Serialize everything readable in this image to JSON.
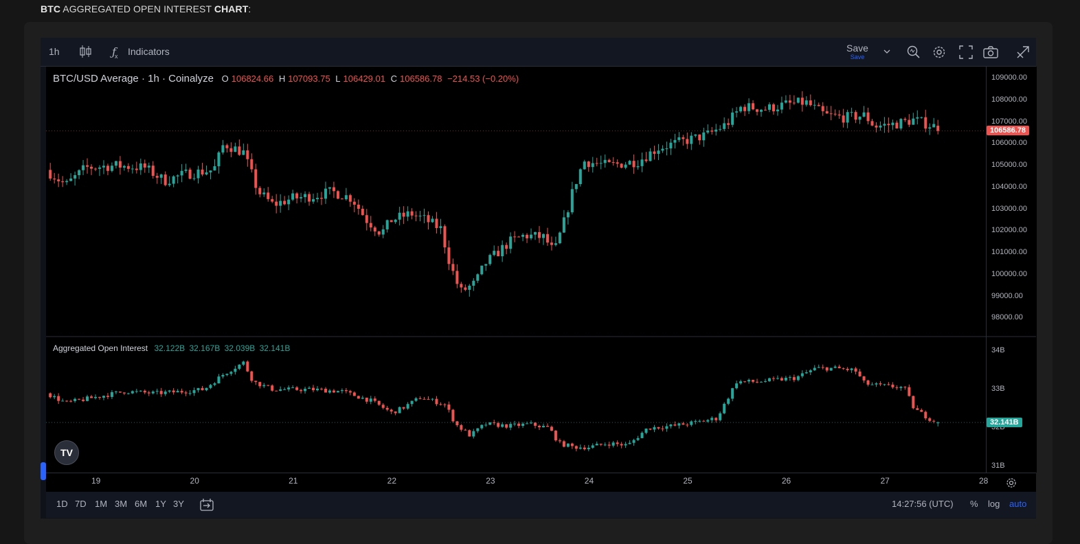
{
  "page": {
    "title_bold_1": "BTC",
    "title_mid": " AGGREGATED OPEN INTEREST ",
    "title_bold_2": "CHART",
    "title_tail": ":"
  },
  "toolbar": {
    "interval": "1h",
    "chart_type_icon": "candles-icon",
    "indicators_label": "Indicators",
    "save_label": "Save",
    "save_sub": "Save"
  },
  "main_pane": {
    "symbol": "BTC/USD Average · 1h · Coinalyze",
    "o_label": "O",
    "o_value": "106824.66",
    "h_label": "H",
    "h_value": "107093.75",
    "l_label": "L",
    "l_value": "106429.01",
    "c_label": "C",
    "c_value": "106586.78",
    "change": "−214.53 (−0.20%)",
    "last_price": "106586.78",
    "axis_ticks": [
      "109000.00",
      "108000.00",
      "107000.00",
      "106000.00",
      "105000.00",
      "104000.00",
      "103000.00",
      "102000.00",
      "101000.00",
      "100000.00",
      "99000.00",
      "98000.00"
    ]
  },
  "oi_pane": {
    "title": "Aggregated Open Interest",
    "v1": "32.122B",
    "v2": "32.167B",
    "v3": "32.039B",
    "v4": "32.141B",
    "last_value": "32.141B",
    "axis_ticks": [
      "34B",
      "33B",
      "32B",
      "31B"
    ]
  },
  "time_axis": {
    "labels": [
      "19",
      "20",
      "21",
      "22",
      "23",
      "24",
      "25",
      "26",
      "27",
      "28"
    ]
  },
  "bottom_bar": {
    "ranges": [
      "1D",
      "7D",
      "1M",
      "3M",
      "6M",
      "1Y",
      "3Y"
    ],
    "clock": "14:27:56 (UTC)",
    "percent": "%",
    "log": "log",
    "auto": "auto"
  },
  "logo": "TV",
  "colors": {
    "up": "#26a69a",
    "down": "#ef5350",
    "accent": "#2962ff",
    "background": "#000000"
  },
  "chart_data": [
    {
      "type": "candlestick",
      "title": "BTC/USD Average · 1h · Coinalyze",
      "x_labels": [
        "19",
        "20",
        "21",
        "22",
        "23",
        "24",
        "25",
        "26",
        "27",
        "28"
      ],
      "ylim": [
        97500,
        109500
      ],
      "close_anchors": [
        [
          18.5,
          104800
        ],
        [
          18.7,
          104100
        ],
        [
          18.9,
          104900
        ],
        [
          19.2,
          105000
        ],
        [
          19.5,
          104900
        ],
        [
          19.7,
          104300
        ],
        [
          19.9,
          104600
        ],
        [
          20.2,
          104800
        ],
        [
          20.3,
          106000
        ],
        [
          20.5,
          105600
        ],
        [
          20.65,
          103800
        ],
        [
          20.8,
          103200
        ],
        [
          21.0,
          103500
        ],
        [
          21.2,
          103600
        ],
        [
          21.4,
          103800
        ],
        [
          21.6,
          103500
        ],
        [
          21.75,
          102500
        ],
        [
          21.9,
          101900
        ],
        [
          22.0,
          102500
        ],
        [
          22.2,
          102800
        ],
        [
          22.35,
          102500
        ],
        [
          22.5,
          102100
        ],
        [
          22.6,
          100400
        ],
        [
          22.7,
          99200
        ],
        [
          22.85,
          99600
        ],
        [
          22.95,
          100500
        ],
        [
          23.2,
          101500
        ],
        [
          23.35,
          101800
        ],
        [
          23.55,
          101700
        ],
        [
          23.65,
          101000
        ],
        [
          23.75,
          102400
        ],
        [
          23.85,
          104000
        ],
        [
          23.95,
          105200
        ],
        [
          24.2,
          105000
        ],
        [
          24.5,
          105200
        ],
        [
          24.7,
          105800
        ],
        [
          24.95,
          106100
        ],
        [
          25.2,
          106400
        ],
        [
          25.4,
          106900
        ],
        [
          25.55,
          107700
        ],
        [
          25.8,
          107600
        ],
        [
          26.0,
          107800
        ],
        [
          26.2,
          107900
        ],
        [
          26.4,
          107300
        ],
        [
          26.6,
          107200
        ],
        [
          26.8,
          107300
        ],
        [
          26.9,
          106800
        ],
        [
          27.1,
          106900
        ],
        [
          27.3,
          107100
        ],
        [
          27.5,
          106800
        ],
        [
          27.56,
          106586.78
        ]
      ],
      "last": {
        "open": 106824.66,
        "high": 107093.75,
        "low": 106429.01,
        "close": 106586.78
      }
    },
    {
      "type": "candlestick",
      "title": "Aggregated Open Interest",
      "unit": "B",
      "ylim": [
        30.8,
        34.3
      ],
      "close_anchors": [
        [
          18.5,
          32.9
        ],
        [
          18.7,
          32.65
        ],
        [
          19.0,
          32.8
        ],
        [
          19.3,
          32.95
        ],
        [
          19.6,
          32.9
        ],
        [
          19.9,
          32.95
        ],
        [
          20.1,
          33.0
        ],
        [
          20.3,
          33.4
        ],
        [
          20.5,
          33.7
        ],
        [
          20.6,
          33.2
        ],
        [
          20.8,
          33.0
        ],
        [
          21.2,
          33.0
        ],
        [
          21.5,
          32.95
        ],
        [
          21.8,
          32.7
        ],
        [
          22.0,
          32.4
        ],
        [
          22.1,
          32.5
        ],
        [
          22.3,
          32.8
        ],
        [
          22.55,
          32.6
        ],
        [
          22.65,
          32.1
        ],
        [
          22.8,
          31.8
        ],
        [
          22.95,
          32.1
        ],
        [
          23.2,
          32.05
        ],
        [
          23.4,
          32.1
        ],
        [
          23.6,
          32.0
        ],
        [
          23.7,
          31.6
        ],
        [
          23.85,
          31.5
        ],
        [
          24.0,
          31.5
        ],
        [
          24.2,
          31.6
        ],
        [
          24.4,
          31.55
        ],
        [
          24.6,
          32.0
        ],
        [
          24.85,
          32.05
        ],
        [
          25.1,
          32.15
        ],
        [
          25.3,
          32.25
        ],
        [
          25.5,
          33.2
        ],
        [
          25.7,
          33.2
        ],
        [
          25.9,
          33.25
        ],
        [
          26.1,
          33.3
        ],
        [
          26.3,
          33.55
        ],
        [
          26.5,
          33.55
        ],
        [
          26.7,
          33.5
        ],
        [
          26.8,
          33.15
        ],
        [
          26.95,
          33.1
        ],
        [
          27.2,
          33.05
        ],
        [
          27.3,
          32.5
        ],
        [
          27.45,
          32.25
        ],
        [
          27.56,
          32.141
        ]
      ],
      "last": {
        "open": 32.122,
        "high": 32.167,
        "low": 32.039,
        "close": 32.141
      }
    }
  ]
}
